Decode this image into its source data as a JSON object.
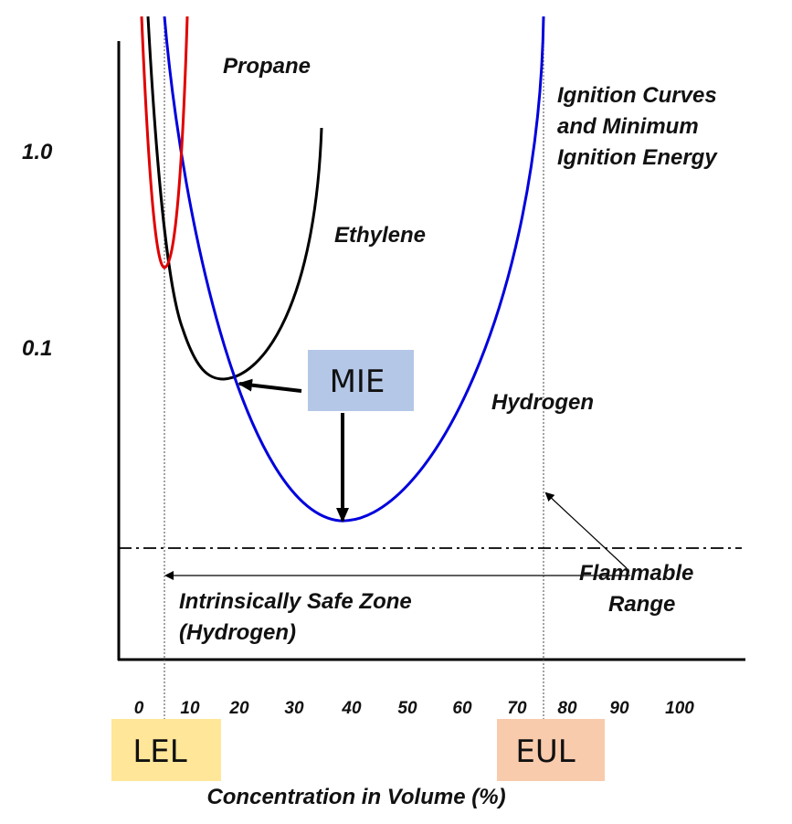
{
  "title": [
    "Ignition Curves",
    "and Minimum",
    "Ignition Energy"
  ],
  "y_labels": [
    "1.0",
    "0.1"
  ],
  "x_labels": [
    "0",
    "10",
    "20",
    "30",
    "40",
    "50",
    "60",
    "70",
    "80",
    "90",
    "100"
  ],
  "x_axis_title": "Concentration in Volume (%)",
  "curves": {
    "propane": "Propane",
    "ethylene": "Ethylene",
    "hydrogen": "Hydrogen"
  },
  "mie": "MIE",
  "flammable_range": [
    "Flammable",
    "Range"
  ],
  "safe_zone": [
    "Intrinsically Safe Zone",
    "(Hydrogen)"
  ],
  "lel": "LEL",
  "eul": "EUL"
}
